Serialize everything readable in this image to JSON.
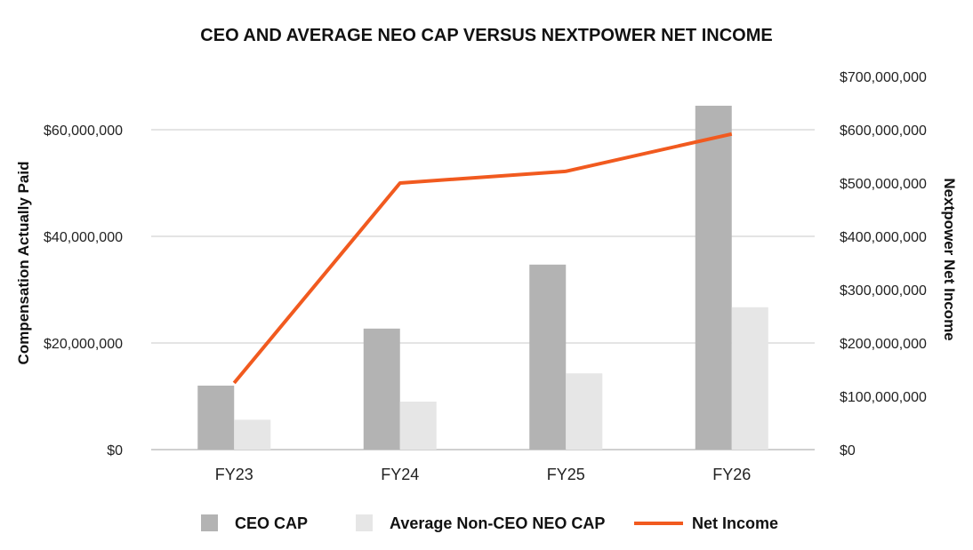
{
  "chart_data": {
    "type": "bar",
    "title": "CEO AND AVERAGE NEO CAP VERSUS NEXTPOWER NET INCOME",
    "categories": [
      "FY23",
      "FY24",
      "FY25",
      "FY26"
    ],
    "series": [
      {
        "name": "CEO CAP",
        "type": "bar",
        "axis": "left",
        "color": "#b3b3b3",
        "values": [
          12000000,
          22700000,
          34700000,
          64500000
        ]
      },
      {
        "name": "Average Non-CEO NEO CAP",
        "type": "bar",
        "axis": "left",
        "color": "#e6e6e6",
        "values": [
          5600000,
          9000000,
          14300000,
          26700000
        ]
      },
      {
        "name": "Net Income",
        "type": "line",
        "axis": "right",
        "color": "#f15a1f",
        "values": [
          125000000,
          500000000,
          522000000,
          592000000
        ]
      }
    ],
    "ylabel": "Compensation Actually Paid",
    "y2label": "Nextpower Net Income",
    "ylim": [
      0,
      70000000
    ],
    "y2lim": [
      0,
      700000000
    ],
    "yticks": [
      "$0",
      "$20,000,000",
      "$40,000,000",
      "$60,000,000"
    ],
    "y2ticks": [
      "$0",
      "$100,000,000",
      "$200,000,000",
      "$300,000,000",
      "$400,000,000",
      "$500,000,000",
      "$600,000,000",
      "$700,000,000"
    ],
    "ytick_values": [
      0,
      20000000,
      40000000,
      60000000
    ],
    "y2tick_values": [
      0,
      100000000,
      200000000,
      300000000,
      400000000,
      500000000,
      600000000,
      700000000
    ],
    "grid": true,
    "legend": "bottom-center"
  }
}
